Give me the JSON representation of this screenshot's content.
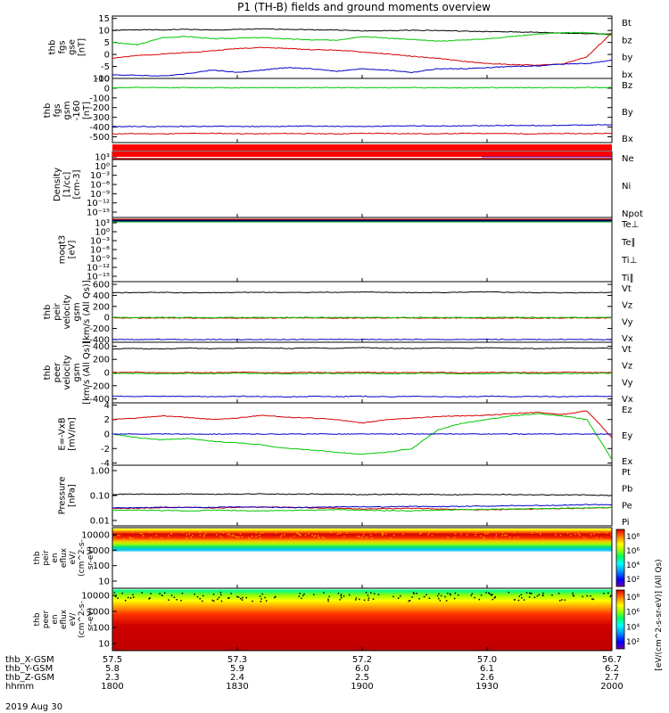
{
  "title": "P1 (TH-B) fields and ground moments overview",
  "date": "2019 Aug 30",
  "chart_data": {
    "type": "line",
    "x_ticks": [
      "1800",
      "1830",
      "1900",
      "1930",
      "2000"
    ],
    "panels": [
      {
        "ylabel": [
          "thb",
          "fgs",
          "gse",
          "[nT]"
        ],
        "ylim": [
          -10,
          16
        ],
        "ticks": [
          15,
          10,
          5,
          0,
          -5,
          -10
        ],
        "series": [
          {
            "name": "Bt",
            "color": "#000000",
            "values": [
              10,
              10.3,
              10.2,
              10.5,
              10.1,
              10.4,
              10.6,
              10.5,
              10.3,
              10.2,
              9.8,
              9.9,
              10.1,
              10.0,
              9.7,
              9.5,
              9.4,
              9.2,
              8.9,
              8.7,
              8.5
            ]
          },
          {
            "name": "bz",
            "color": "#d40000",
            "values": [
              -1.5,
              -0.5,
              0.2,
              0.8,
              1.5,
              2.5,
              2.9,
              2.5,
              2.0,
              1.8,
              1.0,
              0.2,
              -0.8,
              -1.6,
              -2.8,
              -3.8,
              -4.2,
              -4.5,
              -4.0,
              -1.0,
              9.0
            ]
          },
          {
            "name": "by",
            "color": "#00c800",
            "values": [
              5.0,
              4.0,
              7.0,
              7.5,
              6.5,
              6.8,
              7.0,
              6.5,
              6.0,
              6.0,
              7.5,
              6.8,
              6.2,
              5.5,
              6.0,
              6.5,
              7.5,
              8.5,
              9.0,
              9.2,
              8.0
            ]
          },
          {
            "name": "bx",
            "color": "#0000c8",
            "values": [
              -8.5,
              -8.7,
              -9.0,
              -8.0,
              -6.5,
              -7.5,
              -6.5,
              -5.5,
              -6.0,
              -7.0,
              -6.0,
              -6.5,
              -7.5,
              -6.0,
              -6.0,
              -5.5,
              -5.0,
              -4.8,
              -4.0,
              -3.8,
              -2.5
            ]
          }
        ]
      },
      {
        "ylabel": [
          "thb",
          "fgs",
          "gsm",
          "-160",
          "[nT]"
        ],
        "ylim": [
          -560,
          100
        ],
        "ticks": [
          100,
          0,
          -100,
          -200,
          -300,
          -400,
          -500
        ],
        "series": [
          {
            "name": "Bz",
            "color": "#d40000",
            "values": [
              -470,
              -468,
              -470,
              -466,
              -465,
              -468,
              -470,
              -466,
              -468,
              -470,
              -465,
              -466,
              -468,
              -470,
              -466,
              -465,
              -468,
              -470,
              -466,
              -468,
              -465
            ]
          },
          {
            "name": "By",
            "color": "#00c800",
            "values": [
              5,
              6,
              5,
              6,
              5,
              4,
              6,
              5,
              5,
              6,
              5,
              5,
              6,
              5,
              4,
              5,
              6,
              5,
              5,
              6,
              5
            ]
          },
          {
            "name": "Bx",
            "color": "#0000c8",
            "values": [
              -395,
              -394,
              -396,
              -393,
              -392,
              -394,
              -395,
              -392,
              -390,
              -392,
              -393,
              -390,
              -388,
              -390,
              -388,
              -386,
              -384,
              -385,
              -382,
              -380,
              -375
            ]
          }
        ]
      },
      {
        "ylabel": [
          "Density",
          "[1/cc]",
          "[cm-3]"
        ],
        "scale": "log",
        "ylim": [
          1e-16,
          1000
        ],
        "ticks_text": [
          "10³",
          "10⁰",
          "10⁻³",
          "10⁻⁶",
          "10⁻⁹",
          "10⁻¹²",
          "10⁻¹⁵"
        ],
        "series": [
          {
            "name": "Ne",
            "color": "#d40000"
          },
          {
            "name": "Ni",
            "color": "#000000"
          },
          {
            "name": "Npot",
            "color": "#0000c8"
          }
        ]
      },
      {
        "ylabel": [
          "moqt3",
          "[eV]"
        ],
        "scale": "log",
        "ylim": [
          1e-16,
          1000
        ],
        "ticks_text": [
          "10³",
          "10⁰",
          "10⁻³",
          "10⁻⁶",
          "10⁻⁹",
          "10⁻¹²",
          "10⁻¹⁵"
        ],
        "series": [
          {
            "name": "Te⊥",
            "color": "#d40000"
          },
          {
            "name": "Te∥",
            "color": "#000000"
          },
          {
            "name": "Ti⊥",
            "color": "#0000c8"
          },
          {
            "name": "Ti∥",
            "color": "#00c800"
          }
        ]
      },
      {
        "ylabel": [
          "thb",
          "peir",
          "velocity",
          "gsm",
          "[km/s (All Qs)]"
        ],
        "ylim": [
          -450,
          650
        ],
        "ticks": [
          600,
          400,
          200,
          0,
          -200,
          -400
        ],
        "series": [
          {
            "name": "Vt",
            "color": "#000000",
            "values": [
              450,
              452,
              455,
              448,
              450,
              453,
              456,
              452,
              455,
              458,
              460,
              455,
              450,
              452,
              458,
              462,
              455,
              450,
              448,
              452,
              455
            ]
          },
          {
            "name": "Vz",
            "color": "#d40000",
            "values": [
              -10,
              -12,
              -8,
              -10,
              -15,
              -10,
              -12,
              -8,
              -10,
              -12,
              -10,
              -8,
              -10,
              -12,
              -10,
              -15,
              -10,
              -12,
              -10,
              -8,
              -10
            ]
          },
          {
            "name": "Vy",
            "color": "#00c800",
            "values": [
              0,
              -2,
              2,
              0,
              -5,
              0,
              2,
              -2,
              0,
              3,
              0,
              -3,
              0,
              2,
              -2,
              0,
              3,
              0,
              -2,
              0,
              2
            ]
          },
          {
            "name": "Vx",
            "color": "#0000c8",
            "values": [
              -400,
              -402,
              -398,
              -401,
              -400,
              -403,
              -399,
              -400,
              -402,
              -398,
              -400,
              -401,
              -399,
              -400,
              -402,
              -398,
              -400,
              -401,
              -399,
              -400,
              -402
            ]
          }
        ]
      },
      {
        "ylabel": [
          "thb",
          "peer",
          "velocity",
          "gsm",
          "[km/s (All Qs)]"
        ],
        "ylim": [
          -460,
          460
        ],
        "ticks": [
          400,
          200,
          0,
          -200,
          -400
        ],
        "series": [
          {
            "name": "Vt",
            "color": "#000000",
            "values": [
              360,
              365,
              358,
              370,
              362,
              368,
              375,
              365,
              372,
              368,
              378,
              370,
              365,
              372,
              368,
              375,
              370,
              365,
              372,
              368,
              370
            ]
          },
          {
            "name": "Vz",
            "color": "#d40000",
            "values": [
              0,
              5,
              -5,
              2,
              -3,
              5,
              0,
              -5,
              3,
              0,
              5,
              -2,
              0,
              3,
              -5,
              2,
              0,
              -3,
              5,
              0,
              2
            ]
          },
          {
            "name": "Vy",
            "color": "#00c800",
            "values": [
              -15,
              -10,
              -20,
              -12,
              -18,
              -10,
              -15,
              -20,
              -12,
              -15,
              -10,
              -18,
              -15,
              -12,
              -20,
              -15,
              -10,
              -18,
              -12,
              -15,
              -10
            ]
          },
          {
            "name": "Vx",
            "color": "#0000c8",
            "values": [
              -360,
              -365,
              -358,
              -362,
              -368,
              -360,
              -365,
              -370,
              -362,
              -365,
              -360,
              -368,
              -362,
              -365,
              -370,
              -360,
              -365,
              -362,
              -368,
              -360,
              -365
            ]
          }
        ]
      },
      {
        "ylabel": [
          "E=-VxB",
          "[mV/m]"
        ],
        "ylim": [
          -4.3,
          4.3
        ],
        "ticks": [
          4,
          2,
          0,
          -2,
          -4
        ],
        "series": [
          {
            "name": "Ez",
            "color": "#d40000",
            "values": [
              2.0,
              2.2,
              2.5,
              2.3,
              2.0,
              2.2,
              2.6,
              2.3,
              2.2,
              2.0,
              1.5,
              2.0,
              2.2,
              2.4,
              2.5,
              2.6,
              2.8,
              3.0,
              2.7,
              3.2,
              -0.5
            ]
          },
          {
            "name": "Ey",
            "color": "#00c800",
            "values": [
              0.0,
              -0.5,
              -0.8,
              -0.6,
              -1.0,
              -1.2,
              -1.5,
              -2.0,
              -2.2,
              -2.5,
              -2.8,
              -2.5,
              -2.0,
              0.5,
              1.5,
              2.0,
              2.5,
              2.8,
              2.5,
              2.0,
              -3.5
            ]
          },
          {
            "name": "Ex",
            "color": "#0000c8",
            "values": [
              0,
              0,
              0,
              0,
              0,
              0,
              0,
              0,
              0,
              0,
              0,
              0,
              0,
              0,
              0,
              0,
              0,
              0,
              0,
              0,
              0
            ]
          }
        ]
      },
      {
        "ylabel": [
          "Pressure",
          "[nPa]"
        ],
        "scale": "log",
        "ylim": [
          0.01,
          1.0
        ],
        "ticks_text": [
          "1.00",
          "0.10",
          "0.01"
        ],
        "series": [
          {
            "name": "Pt",
            "color": "#000000",
            "values": [
              0.11,
              0.112,
              0.11,
              0.113,
              0.11,
              0.112,
              0.114,
              0.11,
              0.112,
              0.11,
              0.108,
              0.11,
              0.109,
              0.108,
              0.107,
              0.11,
              0.108,
              0.106,
              0.105,
              0.104,
              0.1
            ]
          },
          {
            "name": "Pb",
            "color": "#d40000",
            "values": [
              0.037,
              0.038,
              0.04,
              0.041,
              0.039,
              0.04,
              0.042,
              0.041,
              0.039,
              0.038,
              0.036,
              0.037,
              0.038,
              0.036,
              0.035,
              0.034,
              0.035,
              0.036,
              0.037,
              0.038,
              0.04
            ]
          },
          {
            "name": "Pe",
            "color": "#00c800",
            "values": [
              0.032,
              0.033,
              0.032,
              0.031,
              0.033,
              0.032,
              0.031,
              0.032,
              0.033,
              0.034,
              0.033,
              0.032,
              0.031,
              0.033,
              0.034,
              0.035,
              0.036,
              0.037,
              0.038,
              0.039,
              0.04
            ]
          },
          {
            "name": "Pi",
            "color": "#0000c8",
            "values": [
              0.039,
              0.04,
              0.041,
              0.04,
              0.041,
              0.042,
              0.041,
              0.04,
              0.041,
              0.042,
              0.043,
              0.042,
              0.044,
              0.043,
              0.044,
              0.045,
              0.046,
              0.047,
              0.048,
              0.05,
              0.05
            ]
          }
        ]
      }
    ],
    "spectrograms": [
      {
        "ylabel": [
          "thb",
          "peir",
          "en",
          "eflux",
          "eV/",
          "(cm^2-s-",
          "sr-eV)"
        ],
        "ticks_text": [
          "10000",
          "1000",
          "100",
          "10"
        ],
        "ylim": [
          5,
          20000
        ]
      },
      {
        "ylabel": [
          "thb",
          "peer",
          "en",
          "eflux",
          "eV/",
          "(cm^2-s-",
          "sr-eV)"
        ],
        "ticks_text": [
          "10000",
          "1000",
          "100",
          "10"
        ],
        "ylim": [
          5,
          20000
        ]
      }
    ],
    "colorbar": {
      "label": "[eV/(cm^2-s-sr-eV)] (All Qs)",
      "ticks_text": [
        "10⁸",
        "10⁶",
        "10⁴",
        "10²"
      ],
      "colors": [
        "#6a00a8",
        "#0000ff",
        "#00a0ff",
        "#00ffff",
        "#00ff60",
        "#a0ff00",
        "#ffff00",
        "#ffa000",
        "#ff4000",
        "#d00000"
      ]
    },
    "ephemeris": [
      {
        "label": "thb_X-GSM",
        "values": [
          "57.5",
          "57.3",
          "57.2",
          "57.0",
          "56.7"
        ]
      },
      {
        "label": "thb_Y-GSM",
        "values": [
          "5.8",
          "5.9",
          "6.0",
          "6.1",
          "6.2"
        ]
      },
      {
        "label": "thb_Z-GSM",
        "values": [
          "2.3",
          "2.4",
          "2.5",
          "2.6",
          "2.7"
        ]
      },
      {
        "label": "hhmm",
        "values": [
          "1800",
          "1830",
          "1900",
          "1930",
          "2000"
        ]
      }
    ]
  }
}
